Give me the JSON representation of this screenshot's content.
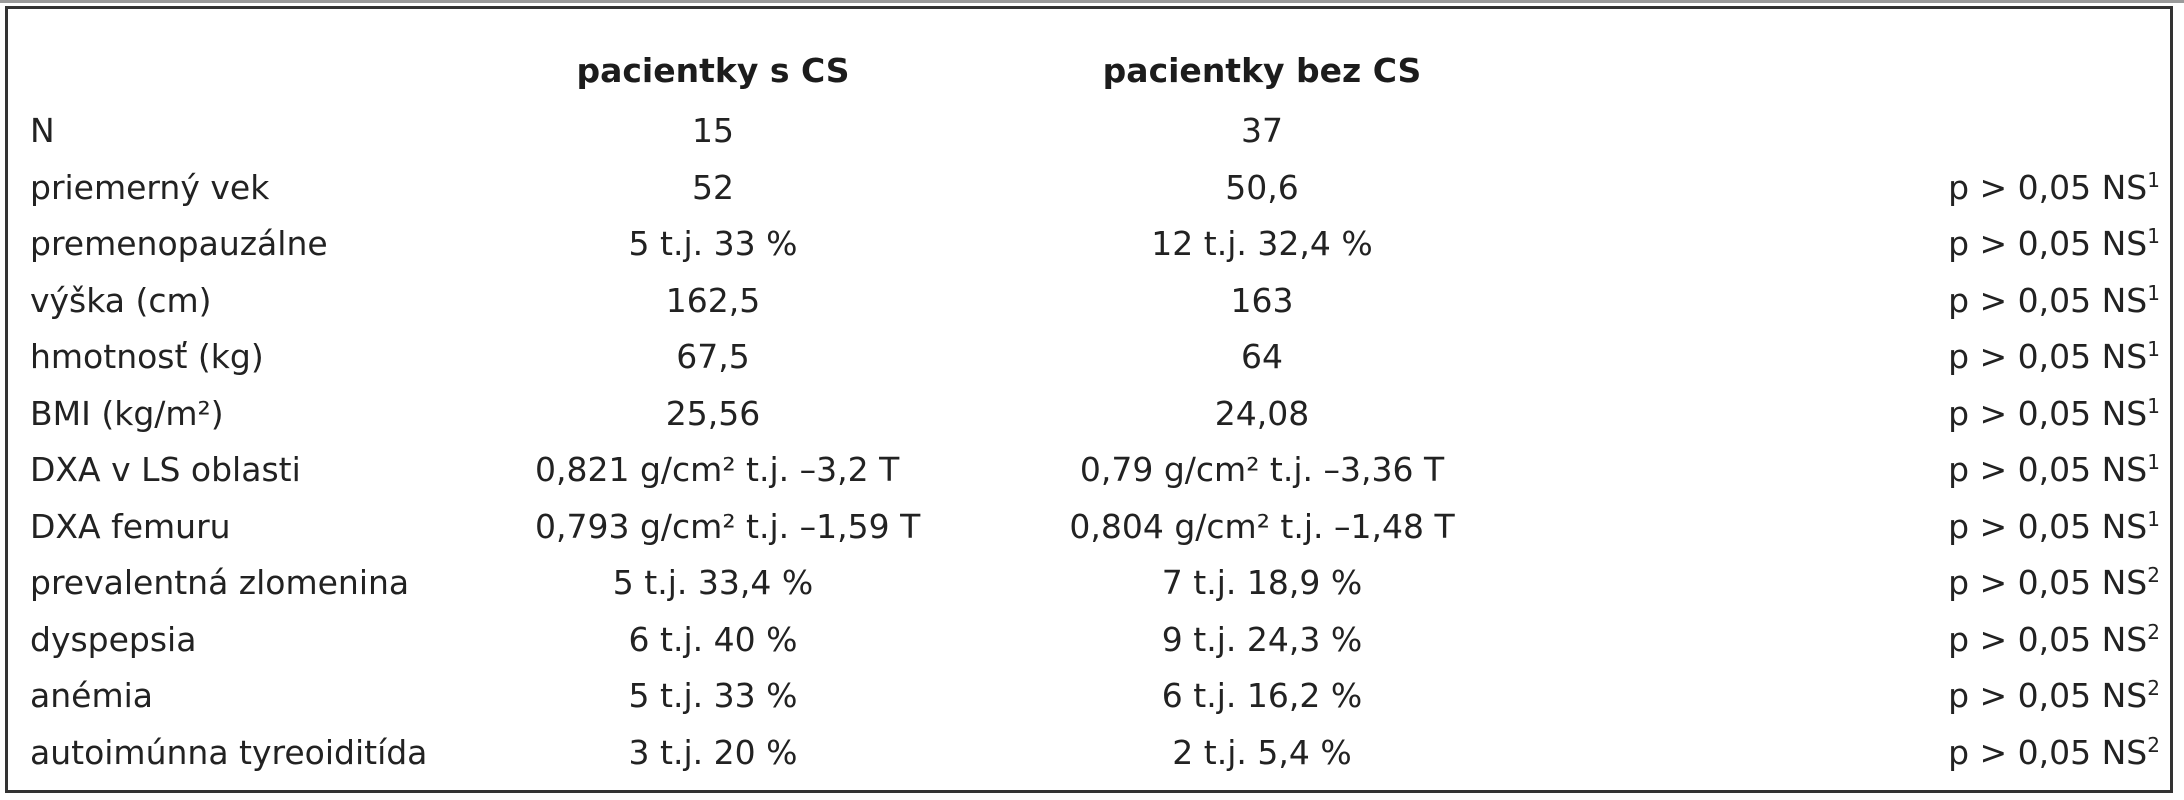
{
  "table": {
    "headers": [
      "",
      "pacientky s CS",
      "pacientky bez CS",
      ""
    ],
    "rows": [
      {
        "label": "N",
        "with_cs": "15",
        "without_cs": "37",
        "p": "",
        "note": ""
      },
      {
        "label": "priemerný vek",
        "with_cs": "52",
        "without_cs": "50,6",
        "p": "p > 0,05 NS",
        "note": "1"
      },
      {
        "label": "premenopauzálne",
        "with_cs": "5 t.j. 33 %",
        "without_cs": "12 t.j. 32,4 %",
        "p": "p > 0,05 NS",
        "note": "1"
      },
      {
        "label": "výška (cm)",
        "with_cs": "162,5",
        "without_cs": "163",
        "p": "p > 0,05 NS",
        "note": "1"
      },
      {
        "label": "hmotnosť (kg)",
        "with_cs": "67,5",
        "without_cs": "64",
        "p": "p > 0,05 NS",
        "note": "1"
      },
      {
        "label": "BMI (kg/m²)",
        "with_cs": "25,56",
        "without_cs": "24,08",
        "p": "p > 0,05 NS",
        "note": "1"
      },
      {
        "label": "DXA v LS oblasti",
        "with_cs": "0,821 g/cm² t.j. –3,2 T",
        "without_cs": "0,79 g/cm² t.j. –3,36 T",
        "p": "p > 0,05 NS",
        "note": "1"
      },
      {
        "label": "DXA femuru",
        "with_cs": "0,793 g/cm² t.j. –1,59 T",
        "without_cs": "0,804 g/cm²  t.j. –1,48 T",
        "p": "p > 0,05 NS",
        "note": "1"
      },
      {
        "label": "prevalentná zlomenina",
        "with_cs": "5 t.j. 33,4 %",
        "without_cs": "7 t.j. 18,9 %",
        "p": "p > 0,05 NS",
        "note": "2"
      },
      {
        "label": "dyspepsia",
        "with_cs": "6 t.j. 40 %",
        "without_cs": "9 t.j. 24,3 %",
        "p": "p > 0,05 NS",
        "note": "2"
      },
      {
        "label": "anémia",
        "with_cs": "5 t.j. 33 %",
        "without_cs": "6 t.j. 16,2 %",
        "p": "p > 0,05 NS",
        "note": "2"
      },
      {
        "label": "autoimúnna tyreoiditída",
        "with_cs": "3 t.j. 20 %",
        "without_cs": "2 t.j. 5,4 %",
        "p": "p > 0,05 NS",
        "note": "2"
      }
    ]
  }
}
